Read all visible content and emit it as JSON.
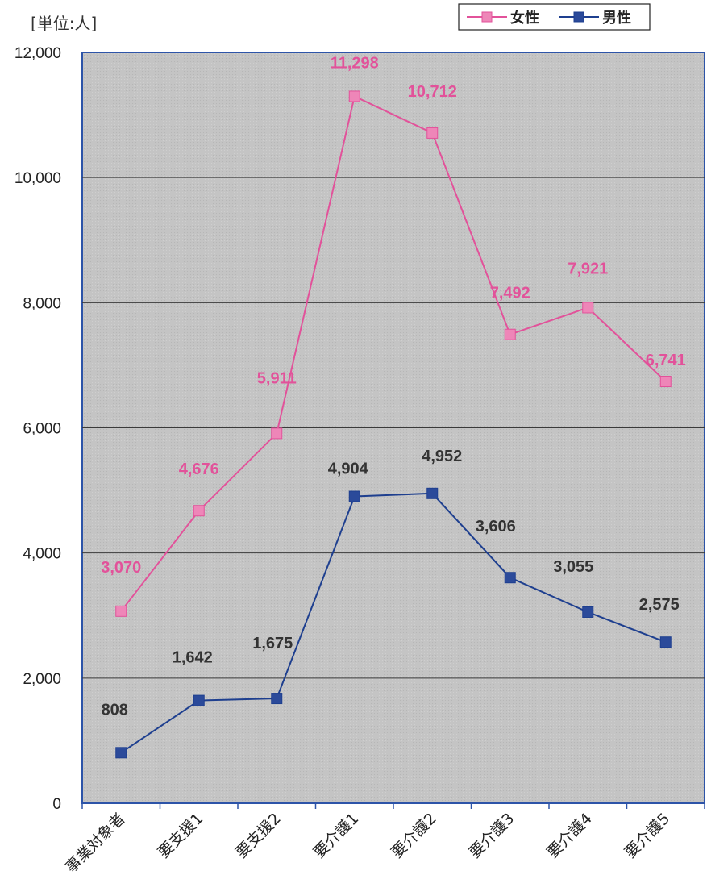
{
  "chart_data": {
    "type": "line",
    "unit_label": "[単位:人]",
    "categories": [
      "事業対象者",
      "要支援1",
      "要支援2",
      "要介護1",
      "要介護2",
      "要介護3",
      "要介護4",
      "要介護5"
    ],
    "series": [
      {
        "name": "女性",
        "color": "#e2529a",
        "marker_color": "#ee86b8",
        "values": [
          3070,
          4676,
          5911,
          11298,
          10712,
          7492,
          7921,
          6741
        ],
        "labels": [
          "3,070",
          "4,676",
          "5,911",
          "11,298",
          "10,712",
          "7,492",
          "7,921",
          "6,741"
        ]
      },
      {
        "name": "男性",
        "color": "#1e3f8f",
        "marker_color": "#2b4a9a",
        "label_color": "#333333",
        "values": [
          808,
          1642,
          1675,
          4904,
          4952,
          3606,
          3055,
          2575
        ],
        "labels": [
          "808",
          "1,642",
          "1,675",
          "4,904",
          "4,952",
          "3,606",
          "3,055",
          "2,575"
        ]
      }
    ],
    "ylim": [
      0,
      12000
    ],
    "yticks": [
      0,
      2000,
      4000,
      6000,
      8000,
      10000,
      12000
    ],
    "ytick_labels": [
      "0",
      "2,000",
      "4,000",
      "6,000",
      "8,000",
      "10,000",
      "12,000"
    ],
    "grid": true,
    "legend_position": "top-right"
  }
}
